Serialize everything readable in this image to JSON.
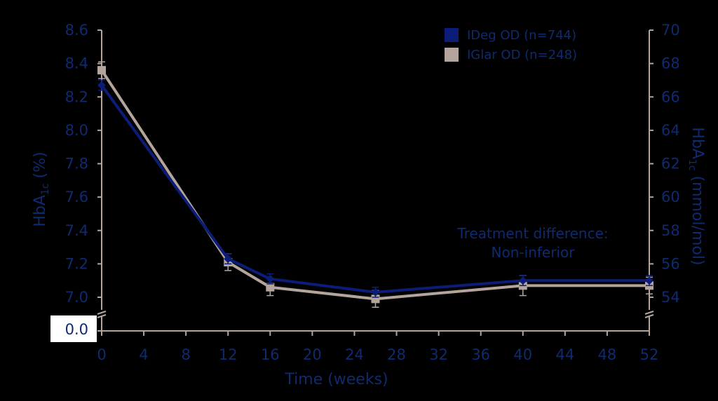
{
  "chart_data": {
    "type": "line",
    "x": [
      0,
      12,
      16,
      26,
      40,
      52
    ],
    "series": [
      {
        "name": "IDeg OD (n=744)",
        "color": "#0b1d78",
        "marker": "diamond",
        "values": [
          8.27,
          7.23,
          7.11,
          7.03,
          7.1,
          7.1
        ],
        "err_low": [
          8.24,
          7.2,
          7.08,
          7.0,
          7.07,
          7.07
        ],
        "err_high": [
          8.3,
          7.26,
          7.14,
          7.06,
          7.13,
          7.13
        ]
      },
      {
        "name": "IGlar OD (n=248)",
        "color": "#b3a59b",
        "marker": "square",
        "values": [
          8.36,
          7.21,
          7.06,
          6.99,
          7.07,
          7.07
        ],
        "err_low": [
          8.31,
          7.16,
          7.01,
          6.94,
          7.01,
          7.02
        ],
        "err_high": [
          8.41,
          7.26,
          7.11,
          7.04,
          7.13,
          7.12
        ]
      }
    ],
    "xlabel": "Time (weeks)",
    "xticks": [
      "0",
      "4",
      "8",
      "12",
      "16",
      "20",
      "24",
      "28",
      "32",
      "36",
      "40",
      "44",
      "48",
      "52"
    ],
    "xlim": [
      0,
      52
    ],
    "ylabel_main": "HbA",
    "ylabel_sub": "1c",
    "ylabel_tail": " (%)",
    "ylim": [
      7.0,
      8.6
    ],
    "yticks": [
      "7.0",
      "7.2",
      "7.4",
      "7.6",
      "7.8",
      "8.0",
      "8.2",
      "8.4",
      "8.6"
    ],
    "y_break_label": "0.0",
    "y2label_main": "HbA",
    "y2label_sub": "1c",
    "y2label_tail": " (mmol/mol)",
    "y2ticks": [
      "54",
      "56",
      "58",
      "60",
      "62",
      "64",
      "66",
      "68",
      "70"
    ],
    "annotation": [
      "Treatment difference:",
      "Non-inferior"
    ],
    "legend_position": "top-right",
    "grid": false,
    "axis_text_color": "#0f2a6e",
    "axis_line_color": "#b3a59b"
  }
}
